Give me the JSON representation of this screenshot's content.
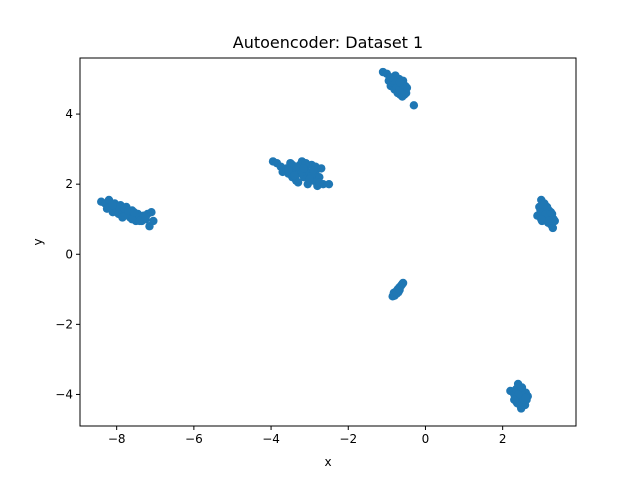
{
  "chart_data": {
    "type": "scatter",
    "title": "Autoencoder: Dataset 1",
    "xlabel": "x",
    "ylabel": "y",
    "xlim": [
      -8.95,
      3.9
    ],
    "ylim": [
      -4.9,
      5.6
    ],
    "xticks": [
      -8,
      -6,
      -4,
      -2,
      0,
      2
    ],
    "yticks": [
      -4,
      -2,
      0,
      2,
      4
    ],
    "xtick_labels": [
      "−8",
      "−6",
      "−4",
      "−2",
      "0",
      "2"
    ],
    "ytick_labels": [
      "−4",
      "−2",
      "0",
      "2",
      "4"
    ],
    "grid": false,
    "marker_color": "#1f77b4",
    "series": [
      {
        "points": [
          [
            -8.4,
            1.5
          ],
          [
            -8.3,
            1.45
          ],
          [
            -8.2,
            1.55
          ],
          [
            -8.15,
            1.35
          ],
          [
            -8.1,
            1.2
          ],
          [
            -8.05,
            1.45
          ],
          [
            -8.0,
            1.3
          ],
          [
            -7.95,
            1.15
          ],
          [
            -7.9,
            1.4
          ],
          [
            -7.85,
            1.25
          ],
          [
            -7.8,
            1.1
          ],
          [
            -7.75,
            1.35
          ],
          [
            -7.7,
            1.2
          ],
          [
            -7.65,
            1.05
          ],
          [
            -7.6,
            1.25
          ],
          [
            -7.55,
            1.1
          ],
          [
            -7.5,
            0.95
          ],
          [
            -7.45,
            1.15
          ],
          [
            -7.4,
            1.05
          ],
          [
            -7.35,
            0.95
          ],
          [
            -7.3,
            1.1
          ],
          [
            -7.25,
            1.0
          ],
          [
            -7.2,
            1.15
          ],
          [
            -7.15,
            0.8
          ],
          [
            -7.1,
            1.2
          ],
          [
            -7.05,
            0.95
          ],
          [
            -8.25,
            1.3
          ],
          [
            -7.95,
            1.35
          ],
          [
            -7.8,
            1.3
          ],
          [
            -7.6,
            1.0
          ],
          [
            -7.4,
            0.95
          ],
          [
            -7.7,
            1.25
          ],
          [
            -8.1,
            1.4
          ],
          [
            -7.85,
            1.05
          ],
          [
            -7.55,
            1.2
          ],
          [
            -7.25,
            1.05
          ],
          [
            -3.95,
            2.65
          ],
          [
            -3.85,
            2.6
          ],
          [
            -3.75,
            2.5
          ],
          [
            -3.7,
            2.35
          ],
          [
            -3.6,
            2.45
          ],
          [
            -3.55,
            2.3
          ],
          [
            -3.5,
            2.6
          ],
          [
            -3.45,
            2.2
          ],
          [
            -3.4,
            2.45
          ],
          [
            -3.35,
            2.1
          ],
          [
            -3.3,
            2.3
          ],
          [
            -3.25,
            2.55
          ],
          [
            -3.2,
            2.65
          ],
          [
            -3.15,
            2.2
          ],
          [
            -3.1,
            2.4
          ],
          [
            -3.05,
            2.0
          ],
          [
            -3.0,
            2.3
          ],
          [
            -2.95,
            2.55
          ],
          [
            -2.9,
            2.1
          ],
          [
            -2.85,
            2.35
          ],
          [
            -2.8,
            1.95
          ],
          [
            -2.75,
            2.2
          ],
          [
            -2.7,
            2.45
          ],
          [
            -2.65,
            2.0
          ],
          [
            -2.5,
            2.0
          ],
          [
            -3.45,
            2.55
          ],
          [
            -3.3,
            2.05
          ],
          [
            -3.1,
            2.6
          ],
          [
            -2.95,
            2.25
          ],
          [
            -3.55,
            2.4
          ],
          [
            -3.2,
            2.35
          ],
          [
            -2.85,
            2.5
          ],
          [
            -3.4,
            2.25
          ],
          [
            -3.0,
            2.15
          ],
          [
            -2.75,
            2.05
          ],
          [
            -3.35,
            2.5
          ],
          [
            -3.15,
            2.45
          ],
          [
            -2.9,
            2.4
          ],
          [
            -1.1,
            5.2
          ],
          [
            -1.0,
            5.15
          ],
          [
            -0.95,
            4.95
          ],
          [
            -0.9,
            4.8
          ],
          [
            -0.85,
            5.05
          ],
          [
            -0.8,
            4.7
          ],
          [
            -0.78,
            5.1
          ],
          [
            -0.75,
            4.9
          ],
          [
            -0.72,
            4.6
          ],
          [
            -0.7,
            4.85
          ],
          [
            -0.68,
            5.0
          ],
          [
            -0.65,
            4.55
          ],
          [
            -0.62,
            4.75
          ],
          [
            -0.6,
            4.5
          ],
          [
            -0.58,
            4.95
          ],
          [
            -0.55,
            4.65
          ],
          [
            -0.52,
            4.8
          ],
          [
            -0.5,
            4.6
          ],
          [
            -0.48,
            4.75
          ],
          [
            -0.3,
            4.25
          ],
          [
            -0.88,
            4.9
          ],
          [
            -0.82,
            4.95
          ],
          [
            -0.75,
            4.75
          ],
          [
            -0.68,
            4.7
          ],
          [
            -0.6,
            4.85
          ],
          [
            -0.55,
            4.55
          ],
          [
            -0.92,
            5.05
          ],
          [
            -0.66,
            4.9
          ],
          [
            -0.85,
            -1.2
          ],
          [
            -0.82,
            -1.1
          ],
          [
            -0.78,
            -1.15
          ],
          [
            -0.75,
            -1.05
          ],
          [
            -0.72,
            -1.0
          ],
          [
            -0.7,
            -1.08
          ],
          [
            -0.68,
            -0.95
          ],
          [
            -0.65,
            -0.92
          ],
          [
            -0.62,
            -0.88
          ],
          [
            -0.6,
            -0.85
          ],
          [
            -0.58,
            -0.82
          ],
          [
            -0.8,
            -1.18
          ],
          [
            -0.74,
            -1.12
          ],
          [
            -0.67,
            -1.02
          ],
          [
            2.9,
            1.1
          ],
          [
            2.95,
            1.35
          ],
          [
            3.0,
            1.55
          ],
          [
            3.02,
            0.95
          ],
          [
            3.05,
            1.2
          ],
          [
            3.08,
            1.45
          ],
          [
            3.1,
            1.0
          ],
          [
            3.12,
            1.3
          ],
          [
            3.15,
            1.1
          ],
          [
            3.18,
            0.9
          ],
          [
            3.2,
            1.25
          ],
          [
            3.22,
            1.05
          ],
          [
            3.25,
            0.85
          ],
          [
            3.28,
            1.15
          ],
          [
            3.3,
            0.75
          ],
          [
            3.32,
            1.0
          ],
          [
            3.35,
            0.95
          ],
          [
            2.98,
            1.25
          ],
          [
            3.05,
            1.4
          ],
          [
            3.12,
            1.15
          ],
          [
            3.2,
            0.95
          ],
          [
            3.25,
            1.2
          ],
          [
            3.0,
            1.0
          ],
          [
            3.15,
            1.35
          ],
          [
            2.2,
            -3.9
          ],
          [
            2.3,
            -4.0
          ],
          [
            2.35,
            -3.85
          ],
          [
            2.38,
            -4.25
          ],
          [
            2.4,
            -3.7
          ],
          [
            2.42,
            -4.1
          ],
          [
            2.45,
            -3.95
          ],
          [
            2.48,
            -4.4
          ],
          [
            2.5,
            -4.2
          ],
          [
            2.52,
            -3.9
          ],
          [
            2.55,
            -4.05
          ],
          [
            2.58,
            -4.3
          ],
          [
            2.6,
            -3.95
          ],
          [
            2.62,
            -4.15
          ],
          [
            2.65,
            -4.05
          ],
          [
            2.35,
            -4.2
          ],
          [
            2.45,
            -4.3
          ],
          [
            2.55,
            -4.15
          ],
          [
            2.4,
            -4.0
          ],
          [
            2.5,
            -3.8
          ],
          [
            2.6,
            -4.1
          ],
          [
            2.3,
            -4.15
          ]
        ]
      }
    ]
  }
}
